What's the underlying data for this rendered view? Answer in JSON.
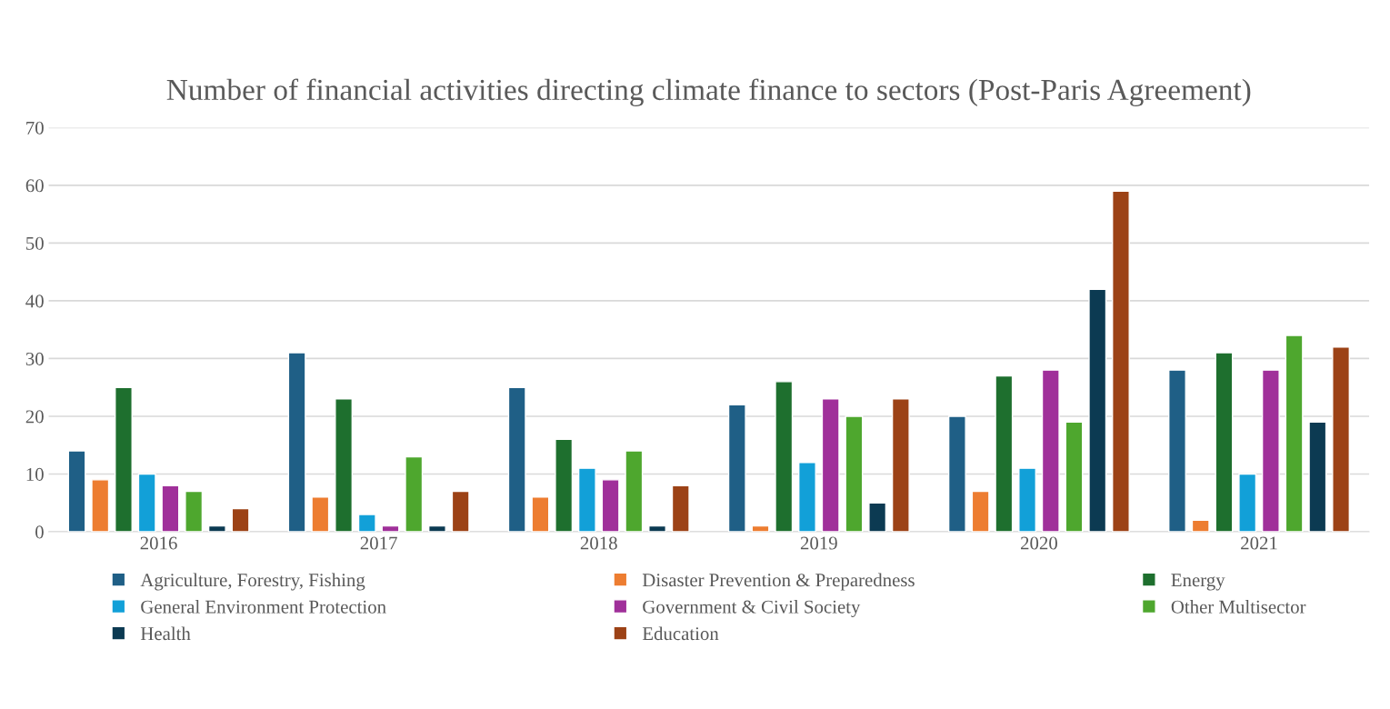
{
  "chart_data": {
    "type": "bar",
    "title": "Number of financial activities directing climate finance to sectors (Post-Paris Agreement)",
    "categories": [
      "2016",
      "2017",
      "2018",
      "2019",
      "2020",
      "2021"
    ],
    "series": [
      {
        "name": "Agriculture, Forestry, Fishing",
        "color": "#1f5f86",
        "values": [
          14,
          31,
          25,
          22,
          20,
          28
        ]
      },
      {
        "name": "Disaster Prevention & Preparedness",
        "color": "#ed7d31",
        "values": [
          9,
          6,
          6,
          1,
          7,
          2
        ]
      },
      {
        "name": "Energy",
        "color": "#1e6f2e",
        "values": [
          25,
          23,
          16,
          26,
          27,
          31
        ]
      },
      {
        "name": "General Environment Protection",
        "color": "#12a0d8",
        "values": [
          10,
          3,
          11,
          12,
          11,
          10
        ]
      },
      {
        "name": "Government & Civil Society",
        "color": "#a0309a",
        "values": [
          8,
          1,
          9,
          23,
          28,
          28
        ]
      },
      {
        "name": "Other Multisector",
        "color": "#4ea72e",
        "values": [
          7,
          13,
          14,
          20,
          19,
          34
        ]
      },
      {
        "name": "Health",
        "color": "#0c3a52",
        "values": [
          1,
          1,
          1,
          5,
          42,
          19
        ]
      },
      {
        "name": "Education",
        "color": "#9c4216",
        "values": [
          4,
          7,
          8,
          23,
          59,
          32
        ]
      }
    ],
    "ylim": [
      0,
      70
    ],
    "yticks": [
      0,
      10,
      20,
      30,
      40,
      50,
      60,
      70
    ],
    "grid": "y",
    "legend": "bottom"
  }
}
